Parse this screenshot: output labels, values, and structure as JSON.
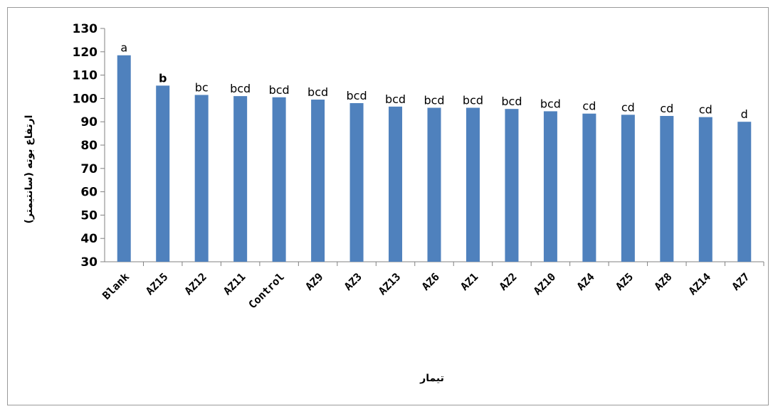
{
  "chart_data": {
    "type": "bar",
    "title": "",
    "xlabel": "تیمار",
    "ylabel": "ارتفاع بوته (سانتیمتر)",
    "ylim": [
      30,
      130
    ],
    "yticks": [
      "30",
      "40",
      "50",
      "60",
      "70",
      "80",
      "90",
      "100",
      "110",
      "120",
      "130"
    ],
    "categories": [
      "Blank",
      "AZ15",
      "AZ12",
      "AZ11",
      "Control",
      "AZ9",
      "AZ3",
      "AZ13",
      "AZ6",
      "AZ1",
      "AZ2",
      "AZ10",
      "AZ4",
      "AZ5",
      "AZ8",
      "AZ14",
      "AZ7"
    ],
    "series": [
      {
        "values": [
          118.5,
          105.5,
          101.5,
          101,
          100.5,
          99.5,
          98,
          96.5,
          96,
          96,
          95.5,
          94.5,
          93.5,
          93,
          92.5,
          92,
          90
        ],
        "labels": [
          "a",
          "b",
          "bc",
          "bcd",
          "bcd",
          "bcd",
          "bcd",
          "bcd",
          "bcd",
          "bcd",
          "bcd",
          "bcd",
          "cd",
          "cd",
          "cd",
          "cd",
          "d"
        ]
      }
    ],
    "bar_color": "#4f81bd",
    "grid": false,
    "legend": "none"
  }
}
